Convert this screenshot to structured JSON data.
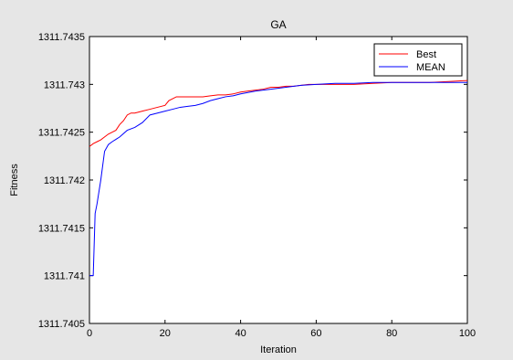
{
  "chart_data": {
    "type": "line",
    "title": "GA",
    "xlabel": "Iteration",
    "ylabel": "Fitness",
    "xlim": [
      0,
      100
    ],
    "ylim": [
      1311.7405,
      1311.7435
    ],
    "xticks": [
      0,
      20,
      40,
      60,
      80,
      100
    ],
    "xtick_labels": [
      "0",
      "20",
      "40",
      "60",
      "80",
      "100"
    ],
    "yticks": [
      1311.7405,
      1311.741,
      1311.7415,
      1311.742,
      1311.7425,
      1311.743,
      1311.7435
    ],
    "ytick_labels": [
      "1311.7405",
      "1311.741",
      "1311.7415",
      "1311.742",
      "1311.7425",
      "1311.743",
      "1311.7435"
    ],
    "grid": false,
    "legend_position": "top-right",
    "series": [
      {
        "name": "Best",
        "color": "#ff0000",
        "x": [
          0,
          1,
          2,
          3,
          4,
          5,
          6,
          7,
          8,
          9,
          10,
          11,
          12,
          14,
          16,
          18,
          20,
          21,
          22,
          23,
          24,
          26,
          28,
          30,
          32,
          34,
          36,
          38,
          40,
          42,
          44,
          46,
          48,
          50,
          52,
          54,
          56,
          58,
          60,
          65,
          70,
          75,
          80,
          85,
          90,
          95,
          100
        ],
        "values": [
          1311.74235,
          1311.74238,
          1311.7424,
          1311.74242,
          1311.74245,
          1311.74248,
          1311.7425,
          1311.74252,
          1311.74258,
          1311.74262,
          1311.74268,
          1311.7427,
          1311.7427,
          1311.74272,
          1311.74274,
          1311.74276,
          1311.74278,
          1311.74283,
          1311.74285,
          1311.74287,
          1311.74287,
          1311.74287,
          1311.74287,
          1311.74287,
          1311.74288,
          1311.74289,
          1311.74289,
          1311.7429,
          1311.74292,
          1311.74293,
          1311.74294,
          1311.74295,
          1311.74297,
          1311.74297,
          1311.74298,
          1311.74298,
          1311.74299,
          1311.743,
          1311.743,
          1311.743,
          1311.743,
          1311.74301,
          1311.74302,
          1311.74302,
          1311.74302,
          1311.74303,
          1311.74304
        ]
      },
      {
        "name": "MEAN",
        "color": "#0000ff",
        "x": [
          0,
          1,
          1.5,
          2,
          3,
          4,
          5,
          6,
          8,
          10,
          12,
          14,
          16,
          18,
          20,
          22,
          24,
          26,
          28,
          30,
          32,
          34,
          36,
          38,
          40,
          44,
          48,
          52,
          56,
          60,
          65,
          70,
          75,
          80,
          90,
          100
        ],
        "values": [
          1311.741,
          1311.741,
          1311.74165,
          1311.74175,
          1311.742,
          1311.7423,
          1311.74237,
          1311.7424,
          1311.74245,
          1311.74252,
          1311.74255,
          1311.7426,
          1311.74268,
          1311.7427,
          1311.74272,
          1311.74274,
          1311.74276,
          1311.74277,
          1311.74278,
          1311.7428,
          1311.74283,
          1311.74285,
          1311.74287,
          1311.74288,
          1311.7429,
          1311.74293,
          1311.74295,
          1311.74297,
          1311.74299,
          1311.743,
          1311.74301,
          1311.74301,
          1311.74302,
          1311.74302,
          1311.74302,
          1311.74302
        ]
      }
    ]
  }
}
